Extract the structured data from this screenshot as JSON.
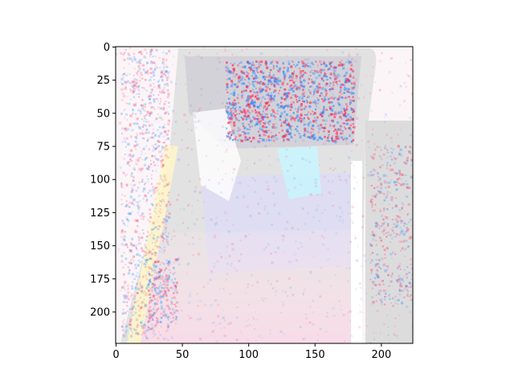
{
  "chart_data": {
    "type": "heatmap",
    "title": "",
    "xlabel": "",
    "ylabel": "",
    "image_size": [
      224,
      224
    ],
    "xlim": [
      0,
      224
    ],
    "ylim": [
      224,
      0
    ],
    "x_ticks": [
      0,
      50,
      100,
      150,
      200
    ],
    "y_ticks": [
      0,
      25,
      50,
      75,
      100,
      125,
      150,
      175,
      200
    ],
    "colormap": "bwr-overlay",
    "colors": {
      "background_gray": "#d6d6d6",
      "positive": "#ff2a55",
      "negative": "#2a8cff",
      "light_pink": "#f8d6e4",
      "pale_yellow": "#fff6c8",
      "lavender": "#d8d8f4",
      "cyan": "#c8f4ff"
    },
    "grid": false,
    "legend": "none"
  }
}
